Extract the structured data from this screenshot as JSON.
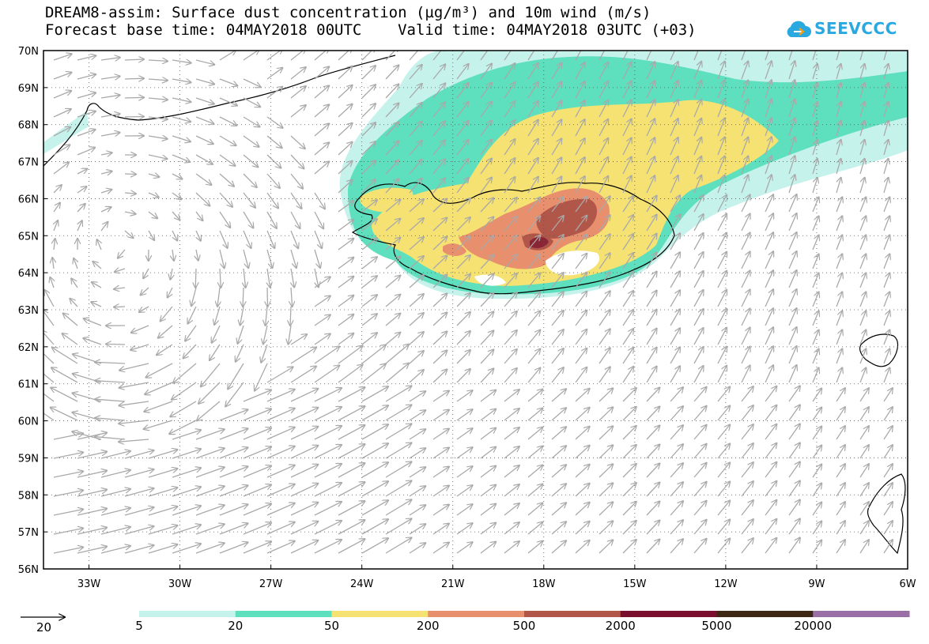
{
  "title": {
    "line1": "DREAM8-assim: Surface dust concentration (µg/m³) and 10m wind (m/s)",
    "line2": "Forecast base time: 04MAY2018 00UTC    Valid time: 04MAY2018 03UTC (+03)"
  },
  "logo": {
    "text": "SEEVCCC",
    "icon": "cloud-icon",
    "color": "#2aa8e0"
  },
  "map": {
    "lat_labels": [
      "70N",
      "69N",
      "68N",
      "67N",
      "66N",
      "65N",
      "64N",
      "63N",
      "62N",
      "61N",
      "60N",
      "59N",
      "58N",
      "57N",
      "56N"
    ],
    "lon_labels": [
      "33W",
      "30W",
      "27W",
      "24W",
      "21W",
      "18W",
      "15W",
      "12W",
      "9W",
      "6W"
    ],
    "lat_range": [
      56,
      70
    ],
    "lon_range": [
      -34.5,
      -6
    ],
    "grid": true,
    "wind_arrow_color": "#a9a9a9",
    "coast_color": "#000000"
  },
  "legend": {
    "reference_vector_label": "20",
    "thresholds": [
      "5",
      "20",
      "50",
      "200",
      "500",
      "2000",
      "5000",
      "20000"
    ],
    "colors": [
      "#c6f2ec",
      "#5edfbd",
      "#f5e272",
      "#e8906e",
      "#b0574a",
      "#7a0f2e",
      "#3d2715",
      "#9a6fa5"
    ]
  }
}
